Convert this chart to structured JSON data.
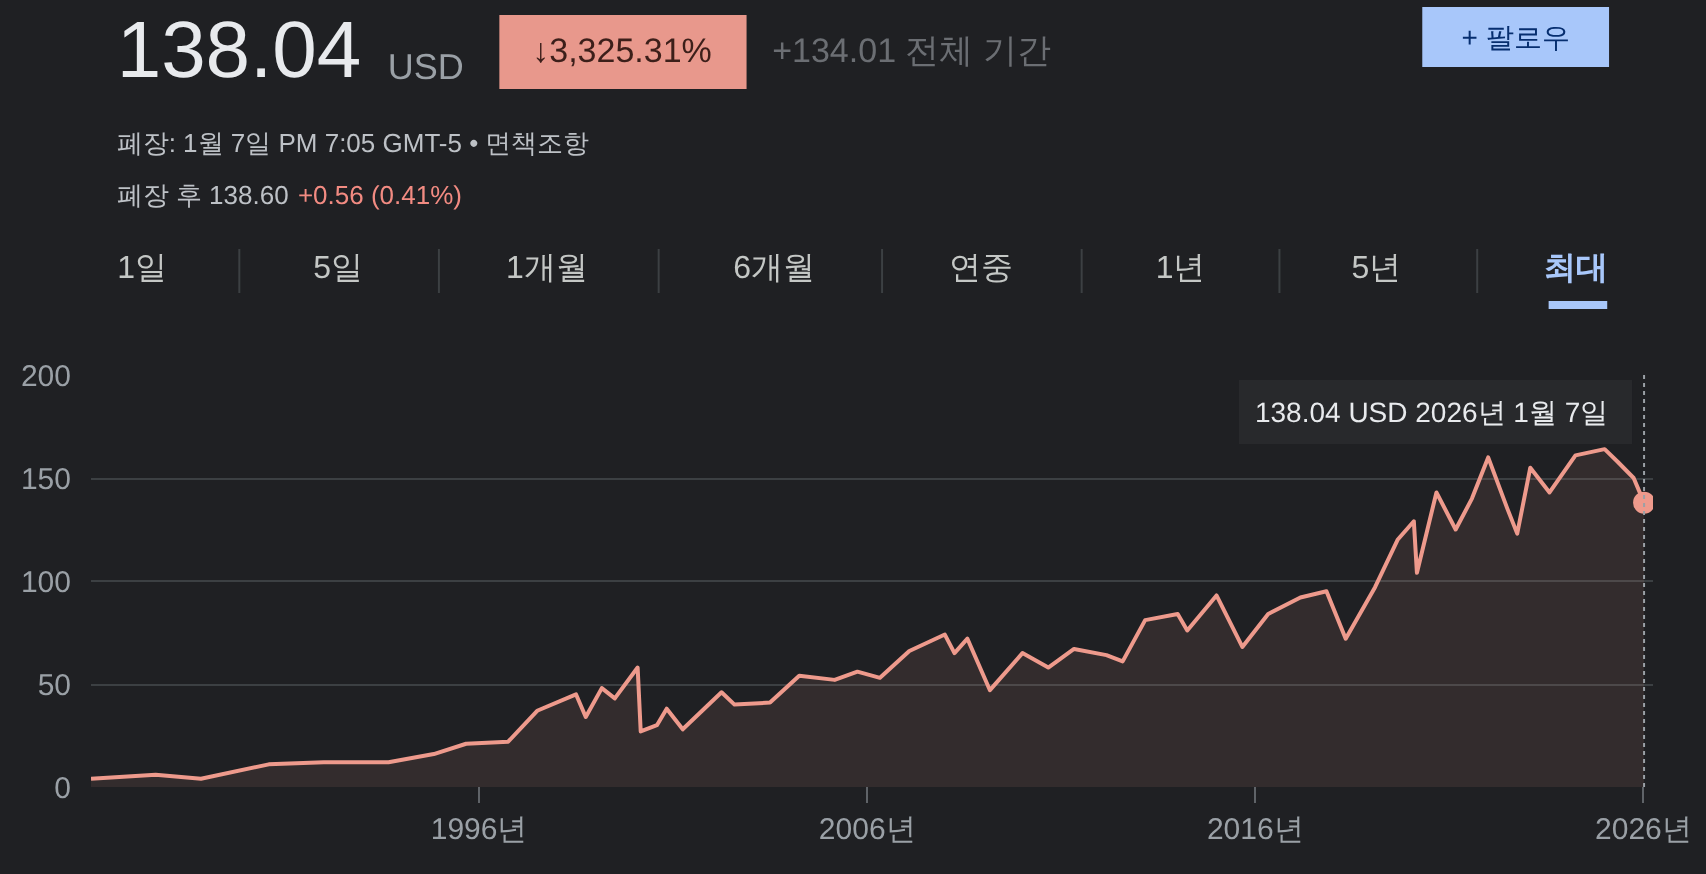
{
  "chart_data": {
    "type": "area",
    "title": "138.04",
    "subtitle": "USD",
    "annotations": [
      "↓3,325.31%",
      "+134.01 전체 기간",
      "+ 팔로우",
      "폐장: 1월 7일 PM 7:05 GMT-5 • 면책조항",
      "폐장 후 138.60",
      "+0.56 (0.41%)",
      "1일",
      "5일",
      "1개월",
      "6개월",
      "연중",
      "1년",
      "5년",
      "최대",
      {
        "text": "138.04 USD  2026년 1월 7일",
        "x": "2026-01-07",
        "y": 138.04
      }
    ],
    "x": [
      "1986-01",
      "1987-09",
      "1988-11",
      "1990-08",
      "1992-01",
      "1993-09",
      "1994-11",
      "1995-09",
      "1996-10",
      "1997-07",
      "1998-07",
      "1998-10",
      "1999-03",
      "1999-07",
      "2000-02",
      "2000-03",
      "2000-08",
      "2000-11",
      "2001-04",
      "2002-04",
      "2002-08",
      "2003-07",
      "2004-04",
      "2005-03",
      "2005-10",
      "2006-05",
      "2007-02",
      "2008-01",
      "2008-04",
      "2008-08",
      "2009-03",
      "2010-01",
      "2010-09",
      "2011-05",
      "2012-03",
      "2012-08",
      "2013-03",
      "2014-01",
      "2014-04",
      "2015-01",
      "2015-09",
      "2016-05",
      "2017-03",
      "2017-11",
      "2018-05",
      "2019-02",
      "2019-09",
      "2020-02",
      "2020-03",
      "2020-09",
      "2021-03",
      "2021-08",
      "2022-01",
      "2022-07",
      "2022-10",
      "2023-02",
      "2023-08",
      "2024-04",
      "2025-01",
      "2025-05",
      "2025-10",
      "2026-01-07"
    ],
    "series": [
      {
        "color": "#ee9a8c",
        "values": [
          4,
          6,
          4,
          11,
          12,
          12,
          16,
          21,
          22,
          37,
          45,
          34,
          48,
          43,
          58,
          27,
          30,
          38,
          28,
          46,
          40,
          41,
          54,
          52,
          56,
          53,
          66,
          74,
          65,
          72,
          47,
          65,
          58,
          67,
          64,
          61,
          81,
          84,
          76,
          93,
          68,
          84,
          92,
          95,
          72,
          97,
          120,
          129,
          104,
          143,
          125,
          140,
          160,
          135,
          123,
          155,
          143,
          161,
          164,
          158,
          150,
          138.04
        ]
      }
    ],
    "xlim": [
      "1986-01",
      "2026-04"
    ],
    "xticks": [
      {
        "value": "1996-01",
        "label": "1996년"
      },
      {
        "value": "2006-01",
        "label": "2006년"
      },
      {
        "value": "2016-01",
        "label": "2016년"
      },
      {
        "value": "2026-01",
        "label": "2026년"
      }
    ],
    "ylim": [
      0,
      200
    ],
    "yticks": [
      0,
      50,
      100,
      150,
      200
    ],
    "ref_lines": [
      {
        "axis": "x",
        "value": "2026-01-07",
        "color": "#9aa0a6",
        "line_style": "dotted"
      }
    ],
    "grid": "y"
  }
}
